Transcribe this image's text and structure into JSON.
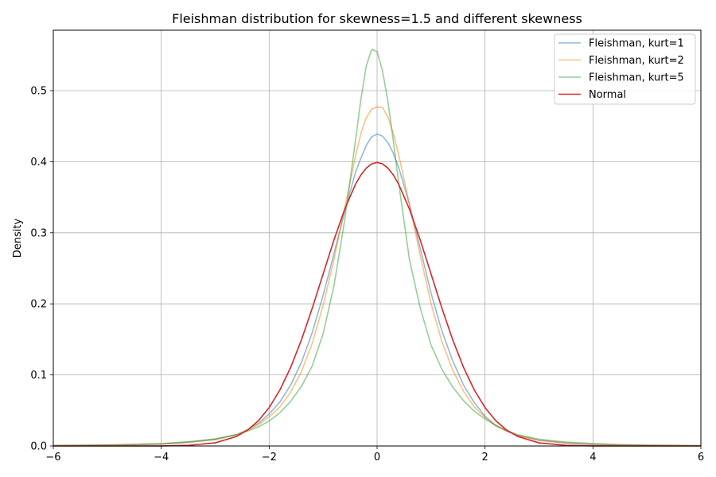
{
  "chart_data": {
    "type": "line",
    "title": "Fleishman distribution for skewness=1.5 and different skewness",
    "xlabel": "",
    "ylabel": "Density",
    "xlim": [
      -6,
      6
    ],
    "ylim": [
      0,
      0.585
    ],
    "xticks": [
      -6,
      -4,
      -2,
      0,
      2,
      4,
      6
    ],
    "yticks": [
      0.0,
      0.1,
      0.2,
      0.3,
      0.4,
      0.5
    ],
    "xtick_labels": [
      "−6",
      "−4",
      "−2",
      "0",
      "2",
      "4",
      "6"
    ],
    "ytick_labels": [
      "0.0",
      "0.1",
      "0.2",
      "0.3",
      "0.4",
      "0.5"
    ],
    "grid": true,
    "legend_position": "top-right",
    "series": [
      {
        "name": "Fleishman, kurt=1",
        "color": "#1f77b4",
        "opacity": 0.5,
        "x": [
          -6,
          -5,
          -4.5,
          -4,
          -3.5,
          -3,
          -2.6,
          -2.4,
          -2.2,
          -2,
          -1.8,
          -1.6,
          -1.4,
          -1.2,
          -1,
          -0.8,
          -0.6,
          -0.4,
          -0.3,
          -0.2,
          -0.1,
          0,
          0.1,
          0.2,
          0.3,
          0.4,
          0.6,
          0.8,
          1,
          1.2,
          1.4,
          1.6,
          1.8,
          2,
          2.2,
          2.4,
          2.6,
          3,
          3.5,
          4,
          4.5,
          5,
          6
        ],
        "y": [
          0.0005,
          0.001,
          0.0015,
          0.0025,
          0.005,
          0.009,
          0.016,
          0.023,
          0.032,
          0.045,
          0.062,
          0.086,
          0.118,
          0.16,
          0.212,
          0.27,
          0.33,
          0.385,
          0.405,
          0.423,
          0.435,
          0.439,
          0.436,
          0.427,
          0.412,
          0.392,
          0.34,
          0.278,
          0.215,
          0.162,
          0.12,
          0.086,
          0.061,
          0.042,
          0.029,
          0.021,
          0.015,
          0.008,
          0.004,
          0.002,
          0.001,
          0.0008,
          0.0003
        ]
      },
      {
        "name": "Fleishman, kurt=2",
        "color": "#ff7f0e",
        "opacity": 0.5,
        "x": [
          -6,
          -5,
          -4.5,
          -4,
          -3.5,
          -3,
          -2.6,
          -2.4,
          -2.2,
          -2,
          -1.8,
          -1.6,
          -1.4,
          -1.2,
          -1,
          -0.8,
          -0.6,
          -0.4,
          -0.3,
          -0.2,
          -0.1,
          0,
          0.1,
          0.2,
          0.3,
          0.4,
          0.6,
          0.8,
          1,
          1.2,
          1.4,
          1.6,
          1.8,
          2,
          2.2,
          2.4,
          2.6,
          3,
          3.5,
          4,
          4.5,
          5,
          6
        ],
        "y": [
          0.0005,
          0.0012,
          0.002,
          0.003,
          0.0055,
          0.0095,
          0.016,
          0.022,
          0.03,
          0.041,
          0.055,
          0.076,
          0.105,
          0.145,
          0.198,
          0.262,
          0.335,
          0.408,
          0.44,
          0.462,
          0.474,
          0.477,
          0.476,
          0.463,
          0.44,
          0.41,
          0.34,
          0.268,
          0.2,
          0.147,
          0.107,
          0.077,
          0.055,
          0.04,
          0.028,
          0.021,
          0.015,
          0.008,
          0.0045,
          0.0025,
          0.0015,
          0.001,
          0.0004
        ]
      },
      {
        "name": "Fleishman, kurt=5",
        "color": "#2ca02c",
        "opacity": 0.5,
        "x": [
          -6,
          -5,
          -4.5,
          -4,
          -3.5,
          -3,
          -2.6,
          -2.4,
          -2.2,
          -2,
          -1.8,
          -1.6,
          -1.4,
          -1.2,
          -1,
          -0.8,
          -0.6,
          -0.4,
          -0.3,
          -0.2,
          -0.1,
          0,
          0.1,
          0.2,
          0.3,
          0.4,
          0.6,
          0.8,
          1,
          1.2,
          1.4,
          1.6,
          1.8,
          2,
          2.2,
          2.4,
          2.6,
          3,
          3.5,
          4,
          4.5,
          5,
          6
        ],
        "y": [
          0.0008,
          0.0015,
          0.0025,
          0.0035,
          0.006,
          0.01,
          0.016,
          0.021,
          0.027,
          0.035,
          0.047,
          0.063,
          0.084,
          0.113,
          0.158,
          0.225,
          0.318,
          0.43,
          0.488,
          0.535,
          0.558,
          0.555,
          0.528,
          0.485,
          0.43,
          0.37,
          0.262,
          0.194,
          0.142,
          0.108,
          0.083,
          0.064,
          0.049,
          0.038,
          0.029,
          0.022,
          0.016,
          0.0095,
          0.0055,
          0.0035,
          0.002,
          0.0012,
          0.0005
        ]
      },
      {
        "name": "Normal",
        "color": "#d62728",
        "opacity": 1,
        "x": [
          -6,
          -5,
          -4.5,
          -4,
          -3.5,
          -3,
          -2.6,
          -2.4,
          -2.2,
          -2,
          -1.8,
          -1.6,
          -1.4,
          -1.2,
          -1,
          -0.8,
          -0.6,
          -0.4,
          -0.3,
          -0.2,
          -0.1,
          0,
          0.1,
          0.2,
          0.3,
          0.4,
          0.6,
          0.8,
          1,
          1.2,
          1.4,
          1.6,
          1.8,
          2,
          2.2,
          2.4,
          2.6,
          3,
          3.5,
          4,
          4.5,
          5,
          6
        ],
        "y": [
          0.0,
          0.0,
          0.0,
          0.0001,
          0.0009,
          0.0044,
          0.0136,
          0.0224,
          0.0355,
          0.054,
          0.079,
          0.1109,
          0.1497,
          0.1942,
          0.242,
          0.2897,
          0.3332,
          0.3683,
          0.3814,
          0.391,
          0.397,
          0.3989,
          0.397,
          0.391,
          0.3814,
          0.3683,
          0.3332,
          0.2897,
          0.242,
          0.1942,
          0.1497,
          0.1109,
          0.079,
          0.054,
          0.0355,
          0.0224,
          0.0136,
          0.0044,
          0.0009,
          0.0001,
          0.0,
          0.0,
          0.0
        ]
      }
    ]
  }
}
